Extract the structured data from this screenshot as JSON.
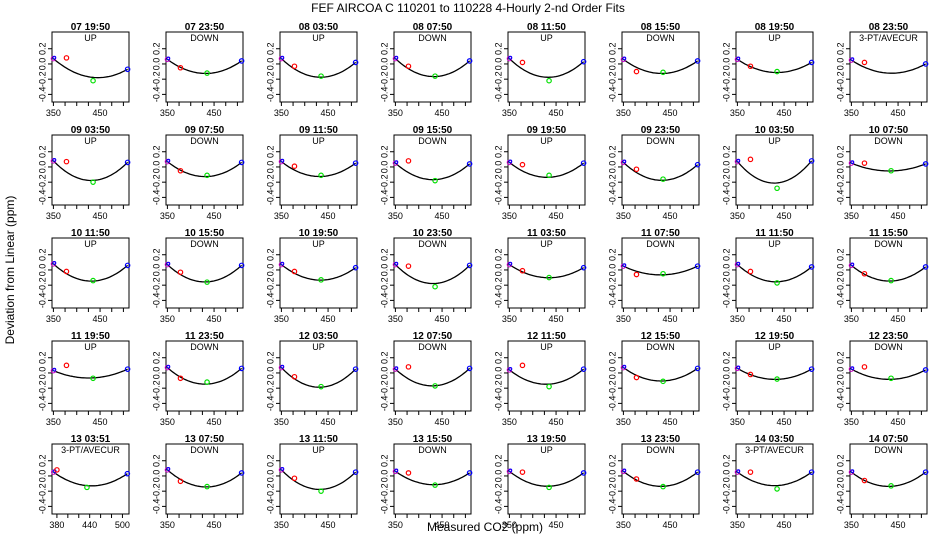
{
  "chart_data": {
    "type": "scatter",
    "title": "FEF   AIRCOA C   110201 to 110228   4-Hourly 2-nd Order Fits",
    "xlabel": "Measured CO2 (ppm)",
    "ylabel": "Deviation from Linear (ppm)",
    "ylim": [
      -0.5,
      0.42
    ],
    "yticks": [
      0.2,
      0,
      -0.2,
      -0.4
    ],
    "ytick_labels": [
      "0.2",
      "0.0",
      "-0.2",
      "-0.4"
    ],
    "default_xlim": [
      347,
      512
    ],
    "default_xticks": [
      350,
      450
    ],
    "alt_xlim": [
      371,
      512
    ],
    "alt_xticks": [
      380,
      440,
      500
    ],
    "point_colors": {
      "low": "#ff0000",
      "mid": "#00e000",
      "high": "#0000ff",
      "ref": "#cc00cc",
      "curve": "#000000"
    },
    "panels": [
      {
        "time": "07 19:50",
        "mode": "UP",
        "a": 0.07,
        "c": -0.18,
        "b": -0.07,
        "g": -0.22,
        "r": 0.07,
        "dr": 0.01
      },
      {
        "time": "07 23:50",
        "mode": "DOWN",
        "a": 0.06,
        "c": -0.12,
        "b": 0.04,
        "g": -0.12,
        "r": -0.05
      },
      {
        "time": "08 03:50",
        "mode": "UP",
        "a": 0.07,
        "c": -0.17,
        "b": 0.02,
        "g": -0.16,
        "r": -0.03
      },
      {
        "time": "08 07:50",
        "mode": "DOWN",
        "a": 0.07,
        "c": -0.16,
        "b": 0.04,
        "g": -0.16,
        "r": -0.03
      },
      {
        "time": "08 11:50",
        "mode": "UP",
        "a": 0.07,
        "c": -0.17,
        "b": 0.03,
        "g": -0.22,
        "r": 0.02
      },
      {
        "time": "08 15:50",
        "mode": "DOWN",
        "a": 0.06,
        "c": -0.12,
        "b": 0.04,
        "g": -0.11,
        "r": -0.1
      },
      {
        "time": "08 19:50",
        "mode": "UP",
        "a": 0.06,
        "c": -0.11,
        "b": 0.02,
        "g": -0.1,
        "r": -0.03
      },
      {
        "time": "08 23:50",
        "mode": "3-PT/AVECUR",
        "a": 0.05,
        "c": -0.12,
        "b": 0.0,
        "r": 0.02
      },
      {
        "time": "09 03:50",
        "mode": "UP",
        "a": 0.08,
        "c": -0.17,
        "b": 0.06,
        "g": -0.2,
        "r": 0.07
      },
      {
        "time": "09 07:50",
        "mode": "DOWN",
        "a": 0.07,
        "c": -0.12,
        "b": 0.06,
        "g": -0.11,
        "r": -0.05
      },
      {
        "time": "09 11:50",
        "mode": "UP",
        "a": 0.07,
        "c": -0.12,
        "b": 0.05,
        "g": -0.11,
        "r": 0.01
      },
      {
        "time": "09 15:50",
        "mode": "DOWN",
        "a": 0.05,
        "c": -0.16,
        "b": 0.04,
        "g": -0.18,
        "r": 0.08
      },
      {
        "time": "09 19:50",
        "mode": "UP",
        "a": 0.06,
        "c": -0.13,
        "b": 0.05,
        "g": -0.11,
        "r": 0.03
      },
      {
        "time": "09 23:50",
        "mode": "DOWN",
        "a": 0.06,
        "c": -0.17,
        "b": 0.03,
        "g": -0.16,
        "r": -0.03
      },
      {
        "time": "10 03:50",
        "mode": "UP",
        "a": 0.07,
        "c": -0.2,
        "b": 0.08,
        "g": -0.28,
        "r": 0.1
      },
      {
        "time": "10 07:50",
        "mode": "DOWN",
        "a": 0.05,
        "c": -0.05,
        "b": 0.04,
        "g": -0.05,
        "r": 0.05
      },
      {
        "time": "10 11:50",
        "mode": "UP",
        "a": 0.08,
        "c": -0.14,
        "b": 0.06,
        "g": -0.14,
        "r": -0.02
      },
      {
        "time": "10 15:50",
        "mode": "DOWN",
        "a": 0.07,
        "c": -0.15,
        "b": 0.06,
        "g": -0.16,
        "r": -0.03
      },
      {
        "time": "10 19:50",
        "mode": "UP",
        "a": 0.07,
        "c": -0.13,
        "b": 0.03,
        "g": -0.13,
        "r": -0.02
      },
      {
        "time": "10 23:50",
        "mode": "DOWN",
        "a": 0.07,
        "c": -0.17,
        "b": 0.06,
        "g": -0.22,
        "r": 0.05
      },
      {
        "time": "11 03:50",
        "mode": "UP",
        "a": 0.07,
        "c": -0.1,
        "b": 0.03,
        "g": -0.1,
        "r": -0.01
      },
      {
        "time": "11 07:50",
        "mode": "DOWN",
        "a": 0.05,
        "c": -0.06,
        "b": 0.05,
        "g": -0.05,
        "r": -0.06
      },
      {
        "time": "11 11:50",
        "mode": "UP",
        "a": 0.07,
        "c": -0.15,
        "b": 0.04,
        "g": -0.17,
        "r": -0.02
      },
      {
        "time": "11 15:50",
        "mode": "DOWN",
        "a": 0.06,
        "c": -0.14,
        "b": 0.04,
        "g": -0.14,
        "r": -0.05
      },
      {
        "time": "11 19:50",
        "mode": "UP",
        "a": 0.03,
        "c": -0.06,
        "b": 0.05,
        "g": -0.07,
        "r": 0.1
      },
      {
        "time": "11 23:50",
        "mode": "DOWN",
        "a": 0.07,
        "c": -0.14,
        "b": 0.06,
        "g": -0.12,
        "r": -0.07
      },
      {
        "time": "12 03:50",
        "mode": "UP",
        "a": 0.07,
        "c": -0.18,
        "b": 0.05,
        "g": -0.18,
        "r": -0.05
      },
      {
        "time": "12 07:50",
        "mode": "DOWN",
        "a": 0.05,
        "c": -0.16,
        "b": 0.06,
        "g": -0.17,
        "r": 0.08
      },
      {
        "time": "12 11:50",
        "mode": "UP",
        "a": 0.04,
        "c": -0.14,
        "b": 0.05,
        "g": -0.18,
        "r": 0.1
      },
      {
        "time": "12 15:50",
        "mode": "DOWN",
        "a": 0.07,
        "c": -0.1,
        "b": 0.06,
        "g": -0.11,
        "r": -0.06
      },
      {
        "time": "12 19:50",
        "mode": "UP",
        "a": 0.06,
        "c": -0.08,
        "b": 0.05,
        "g": -0.08,
        "r": -0.02
      },
      {
        "time": "12 23:50",
        "mode": "DOWN",
        "a": 0.05,
        "c": -0.08,
        "b": 0.04,
        "g": -0.07,
        "r": 0.08
      },
      {
        "time": "13 03:51",
        "mode": "3-PT/AVECUR",
        "xlim": "alt",
        "a": 0.05,
        "c": -0.13,
        "b": 0.03,
        "g": -0.15,
        "r": 0.08,
        "rx": 380
      },
      {
        "time": "13 07:50",
        "mode": "DOWN",
        "a": 0.08,
        "c": -0.14,
        "b": 0.04,
        "g": -0.14,
        "r": -0.07
      },
      {
        "time": "13 11:50",
        "mode": "UP",
        "a": 0.08,
        "c": -0.17,
        "b": 0.05,
        "g": -0.2,
        "r": -0.03
      },
      {
        "time": "13 15:50",
        "mode": "DOWN",
        "a": 0.06,
        "c": -0.11,
        "b": 0.04,
        "g": -0.12,
        "r": 0.04
      },
      {
        "time": "13 19:50",
        "mode": "UP",
        "a": 0.06,
        "c": -0.13,
        "b": 0.04,
        "g": -0.15,
        "r": 0.05
      },
      {
        "time": "13 23:50",
        "mode": "DOWN",
        "a": 0.06,
        "c": -0.13,
        "b": 0.05,
        "g": -0.14,
        "r": -0.04
      },
      {
        "time": "14 03:50",
        "mode": "3-PT/AVECUR",
        "a": 0.05,
        "c": -0.12,
        "b": 0.05,
        "g": -0.17,
        "r": 0.05
      },
      {
        "time": "14 07:50",
        "mode": "DOWN",
        "a": 0.05,
        "c": -0.13,
        "b": 0.05,
        "g": -0.13,
        "r": -0.06
      }
    ]
  }
}
